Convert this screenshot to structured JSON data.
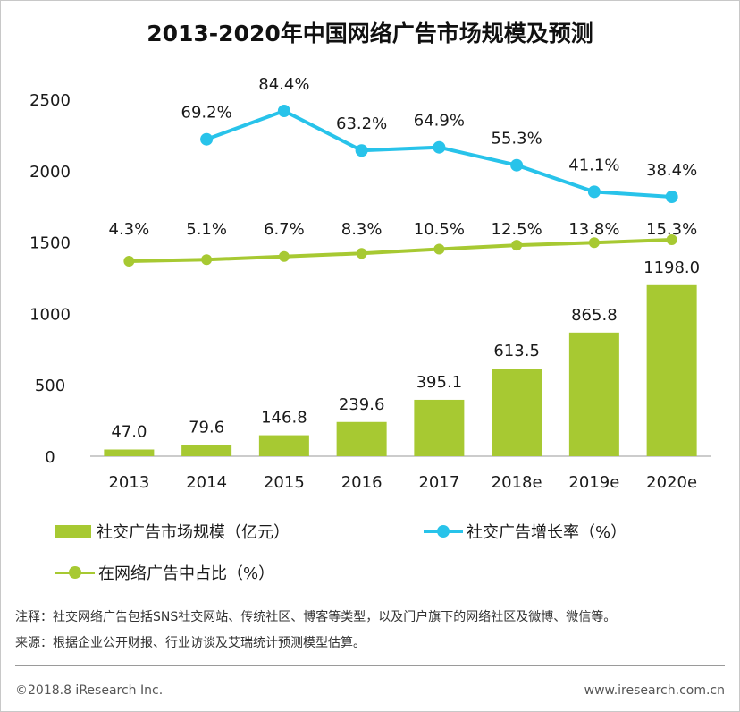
{
  "chart_data": {
    "title": "2013-2020年中国网络广告市场规模及预测",
    "type": "bar",
    "categories": [
      "2013",
      "2014",
      "2015",
      "2016",
      "2017",
      "2018e",
      "2019e",
      "2020e"
    ],
    "ylim": [
      0,
      2500
    ],
    "yticks": [
      0,
      500,
      1000,
      1500,
      2000,
      2500
    ],
    "grid": false,
    "series": [
      {
        "name": "社交广告市场规模（亿元）",
        "type": "bar",
        "color": "#a7c932",
        "values": [
          47.0,
          79.6,
          146.8,
          239.6,
          395.1,
          613.5,
          865.8,
          1198.0
        ],
        "labels": [
          "47.0",
          "79.6",
          "146.8",
          "239.6",
          "395.1",
          "613.5",
          "865.8",
          "1198.0"
        ]
      },
      {
        "name": "社交广告增长率（%）",
        "type": "line",
        "color": "#28c3ea",
        "values": [
          null,
          69.2,
          84.4,
          63.2,
          64.9,
          55.3,
          41.1,
          38.4
        ],
        "labels": [
          null,
          "69.2%",
          "84.4%",
          "63.2%",
          "64.9%",
          "55.3%",
          "41.1%",
          "38.4%"
        ]
      },
      {
        "name": "在网络广告中占比（%）",
        "type": "line",
        "color": "#a7c932",
        "values": [
          4.3,
          5.1,
          6.7,
          8.3,
          10.5,
          12.5,
          13.8,
          15.3
        ],
        "labels": [
          "4.3%",
          "5.1%",
          "6.7%",
          "8.3%",
          "10.5%",
          "12.5%",
          "13.8%",
          "15.3%"
        ]
      }
    ],
    "legend_position": "bottom-left"
  },
  "notes": {
    "note1": "注释：社交网络广告包括SNS社交网站、传统社区、博客等类型，以及门户旗下的网络社区及微博、微信等。",
    "note2": "来源：根据企业公开财报、行业访谈及艾瑞统计预测模型估算。"
  },
  "footer": {
    "copyright": "©2018.8 iResearch Inc.",
    "url": "www.iresearch.com.cn"
  }
}
